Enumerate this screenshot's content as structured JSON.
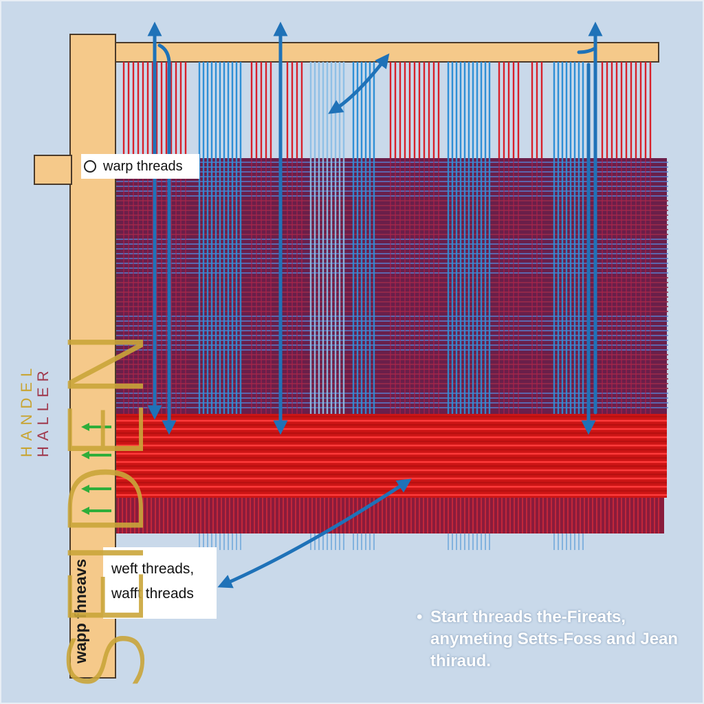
{
  "labels": {
    "warp_threads": "warp threads",
    "weft_line1": "weft threads,",
    "weft_line2": "wafft threads",
    "post_text": "wapp fhneavs"
  },
  "note": {
    "bullet": "•",
    "text": "Start threads the-Fireats, anymeting Setts-Foss and Jean thiraud."
  },
  "branding": {
    "handel": "HANDEL",
    "haller": "HALLER",
    "seiden": "SEIDEN"
  },
  "colors": {
    "background": "#c9d9ea",
    "wood": "#f5c98a",
    "warp_red": "#d8202a",
    "warp_blue": "#2e8fd6",
    "weave_dark": "#6a1f4a",
    "weft_red": "#e01a1a",
    "arrow_blue": "#1f72b8",
    "arrow_green": "#2fae3a"
  },
  "icons": {
    "direction_arrows": "arrow-icon",
    "weft_arrows": "green-arrow-icon"
  }
}
